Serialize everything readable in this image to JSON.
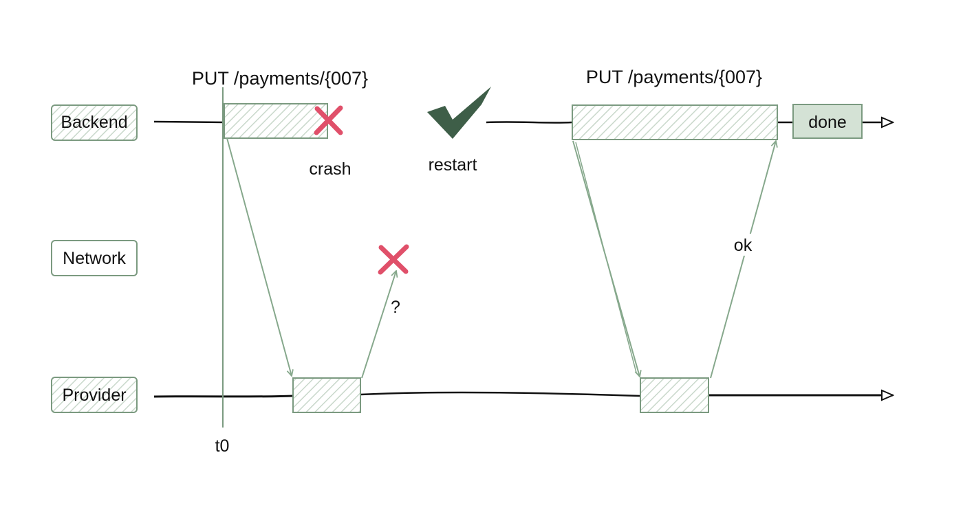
{
  "colors": {
    "box_stroke": "#7b9a80",
    "hatch": "#c9d8cb",
    "arrow": "#86a88c",
    "lifeline": "#111111",
    "cross": "#e0506a",
    "check": "#3e5e48",
    "done_fill": "#d4e2d5"
  },
  "actors": {
    "backend": "Backend",
    "network": "Network",
    "provider": "Provider"
  },
  "requests": {
    "first": "PUT /payments/{007}",
    "second": "PUT /payments/{007}"
  },
  "events": {
    "crash": "crash",
    "restart": "restart",
    "unknown": "?",
    "ok": "ok",
    "done": "done",
    "time_marker": "t0"
  },
  "icons": {
    "crash_mark": "cross-icon",
    "network_loss_mark": "cross-icon",
    "restart_mark": "check-icon"
  }
}
